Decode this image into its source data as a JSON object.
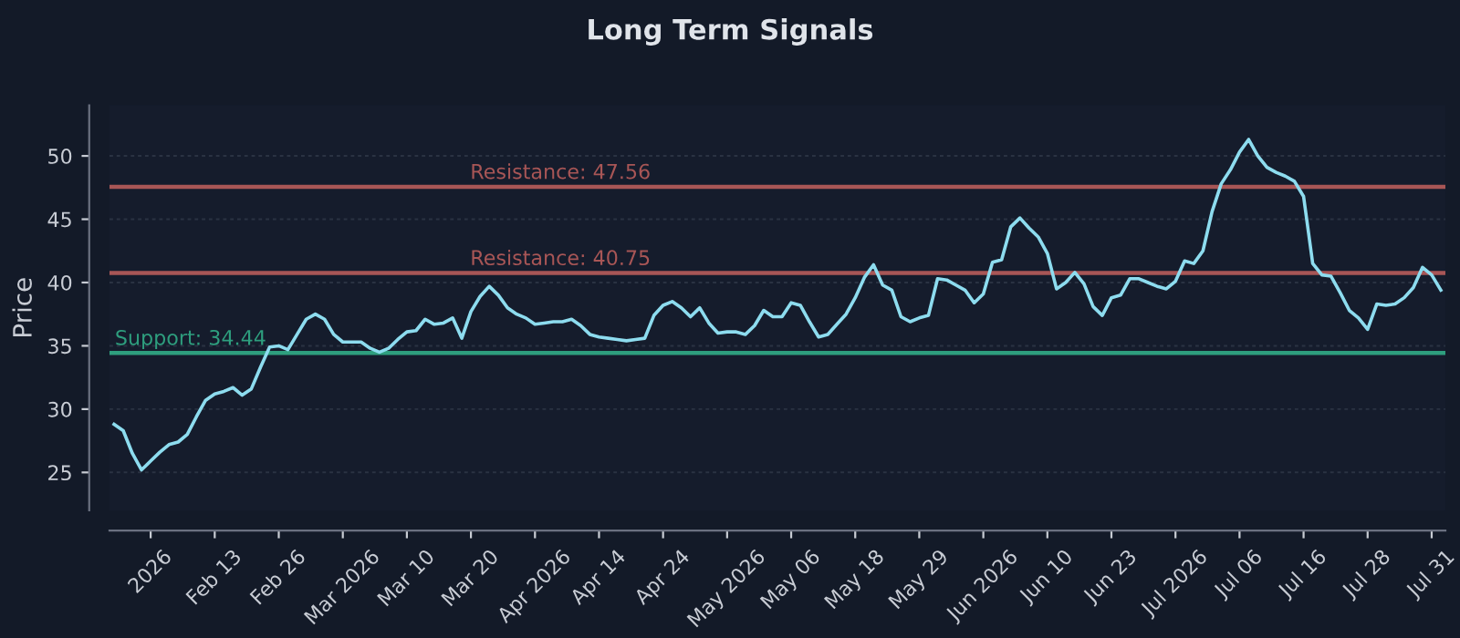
{
  "chart_data": {
    "type": "line",
    "title": "Long Term Signals",
    "ylabel": "Price",
    "categories": [
      null,
      null,
      null,
      null,
      "2026",
      null,
      null,
      null,
      null,
      null,
      null,
      "Feb 13",
      null,
      null,
      null,
      null,
      null,
      null,
      "Feb 26",
      null,
      null,
      null,
      null,
      null,
      null,
      "Mar 2026",
      null,
      null,
      null,
      null,
      null,
      null,
      "Mar 10",
      null,
      null,
      null,
      null,
      null,
      null,
      "Mar 20",
      null,
      null,
      null,
      null,
      null,
      null,
      "Apr 2026",
      null,
      null,
      null,
      null,
      null,
      null,
      "Apr 14",
      null,
      null,
      null,
      null,
      null,
      null,
      "Apr 24",
      null,
      null,
      null,
      null,
      null,
      null,
      "May 2026",
      null,
      null,
      null,
      null,
      null,
      null,
      "May 06",
      null,
      null,
      null,
      null,
      null,
      null,
      "May 18",
      null,
      null,
      null,
      null,
      null,
      null,
      "May 29",
      null,
      null,
      null,
      null,
      null,
      null,
      "Jun 2026",
      null,
      null,
      null,
      null,
      null,
      null,
      "Jun 10",
      null,
      null,
      null,
      null,
      null,
      null,
      "Jun 23",
      null,
      null,
      null,
      null,
      null,
      null,
      "Jul 2026",
      null,
      null,
      null,
      null,
      null,
      null,
      "Jul 06",
      null,
      null,
      null,
      null,
      null,
      null,
      "Jul 16",
      null,
      null,
      null,
      null,
      null,
      null,
      "Jul 28",
      null,
      null,
      null,
      null,
      null,
      null,
      "Jul 31",
      null
    ],
    "series": [
      {
        "color": "#8ddcef",
        "values": [
          28.8,
          28.3,
          26.5,
          25.2,
          25.9,
          26.6,
          27.2,
          27.4,
          28.0,
          29.4,
          30.7,
          31.2,
          31.4,
          31.7,
          31.1,
          31.6,
          33.3,
          34.9,
          35.0,
          34.7,
          35.9,
          37.1,
          37.5,
          37.1,
          35.9,
          35.3,
          35.3,
          35.3,
          34.8,
          34.5,
          34.8,
          35.5,
          36.1,
          36.2,
          37.1,
          36.7,
          36.8,
          37.2,
          35.6,
          37.7,
          38.9,
          39.7,
          39.0,
          38.0,
          37.5,
          37.2,
          36.7,
          36.8,
          36.9,
          36.9,
          37.1,
          36.6,
          35.9,
          35.7,
          35.6,
          35.5,
          35.4,
          35.5,
          35.6,
          37.4,
          38.2,
          38.5,
          38.0,
          37.3,
          38.0,
          36.8,
          36.0,
          36.1,
          36.1,
          35.9,
          36.6,
          37.8,
          37.3,
          37.3,
          38.4,
          38.2,
          36.9,
          35.7,
          35.9,
          36.7,
          37.5,
          38.8,
          40.4,
          41.4,
          39.8,
          39.4,
          37.3,
          36.9,
          37.2,
          37.4,
          40.3,
          40.2,
          39.8,
          39.4,
          38.4,
          39.1,
          41.6,
          41.8,
          44.4,
          45.1,
          44.3,
          43.6,
          42.3,
          39.5,
          40.0,
          40.8,
          39.9,
          38.1,
          37.4,
          38.8,
          39.0,
          40.3,
          40.3,
          40.0,
          39.7,
          39.5,
          40.1,
          41.7,
          41.5,
          42.5,
          45.6,
          47.8,
          48.9,
          50.3,
          51.3,
          50.0,
          49.1,
          48.7,
          48.4,
          48.0,
          46.8,
          41.5,
          40.6,
          40.5,
          39.2,
          37.8,
          37.2,
          36.3,
          38.3,
          38.2,
          38.3,
          38.8,
          39.6,
          41.2,
          40.6,
          39.4
        ]
      }
    ],
    "ylim": [
      22,
      54
    ],
    "yticks": [
      25,
      30,
      35,
      40,
      45,
      50
    ],
    "grid": "y",
    "ref_lines": [
      {
        "axis": "y",
        "value": 47.56,
        "label": "Resistance: 47.56",
        "color": "#a85656"
      },
      {
        "axis": "y",
        "value": 40.75,
        "label": "Resistance: 40.75",
        "color": "#a85656"
      },
      {
        "axis": "y",
        "value": 34.44,
        "label": "Support: 34.44",
        "color": "#2e9e7e"
      }
    ]
  }
}
